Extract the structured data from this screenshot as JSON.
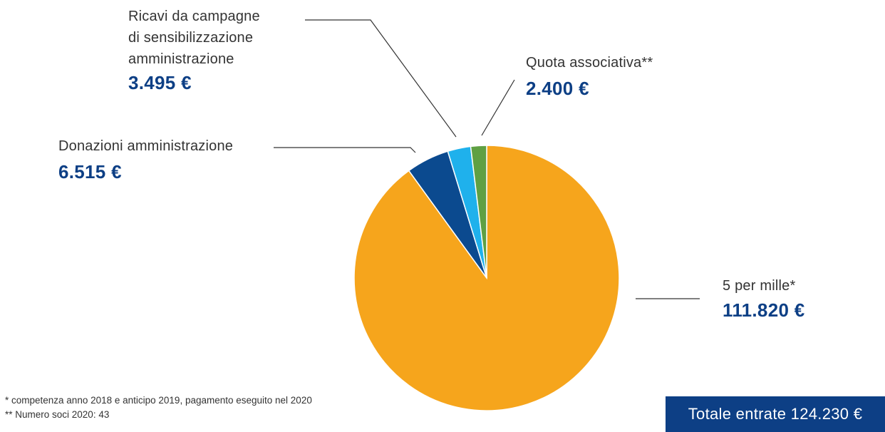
{
  "chart_data": {
    "type": "pie",
    "slices": [
      {
        "label": "5 per mille*",
        "value": 111820,
        "value_label": "111.820 €",
        "color": "#f6a51c"
      },
      {
        "label": "Donazioni amministrazione",
        "value": 6515,
        "value_label": "6.515 €",
        "color": "#0b4a8f"
      },
      {
        "label": "Ricavi da campagne di sensibilizzazione amministrazione",
        "value": 3495,
        "value_label": "3.495 €",
        "color": "#1fb1ec"
      },
      {
        "label": "Quota associativa**",
        "value": 2400,
        "value_label": "2.400 €",
        "color": "#5fa043"
      }
    ],
    "total_label": "Totale entrate 124.230  €"
  },
  "labels": {
    "ricavi_line1": "Ricavi da campagne",
    "ricavi_line2": "di sensibilizzazione",
    "ricavi_line3": "amministrazione",
    "ricavi_value": "3.495 €",
    "quota": "Quota associativa**",
    "quota_value": "2.400 €",
    "donazioni": "Donazioni amministrazione",
    "donazioni_value": "6.515 €",
    "mille": "5 per mille*",
    "mille_value": "111.820 €"
  },
  "footnotes": {
    "note1": "* competenza anno 2018 e anticipo 2019, pagamento eseguito nel 2020",
    "note2": "** Numero soci 2020: 43"
  }
}
